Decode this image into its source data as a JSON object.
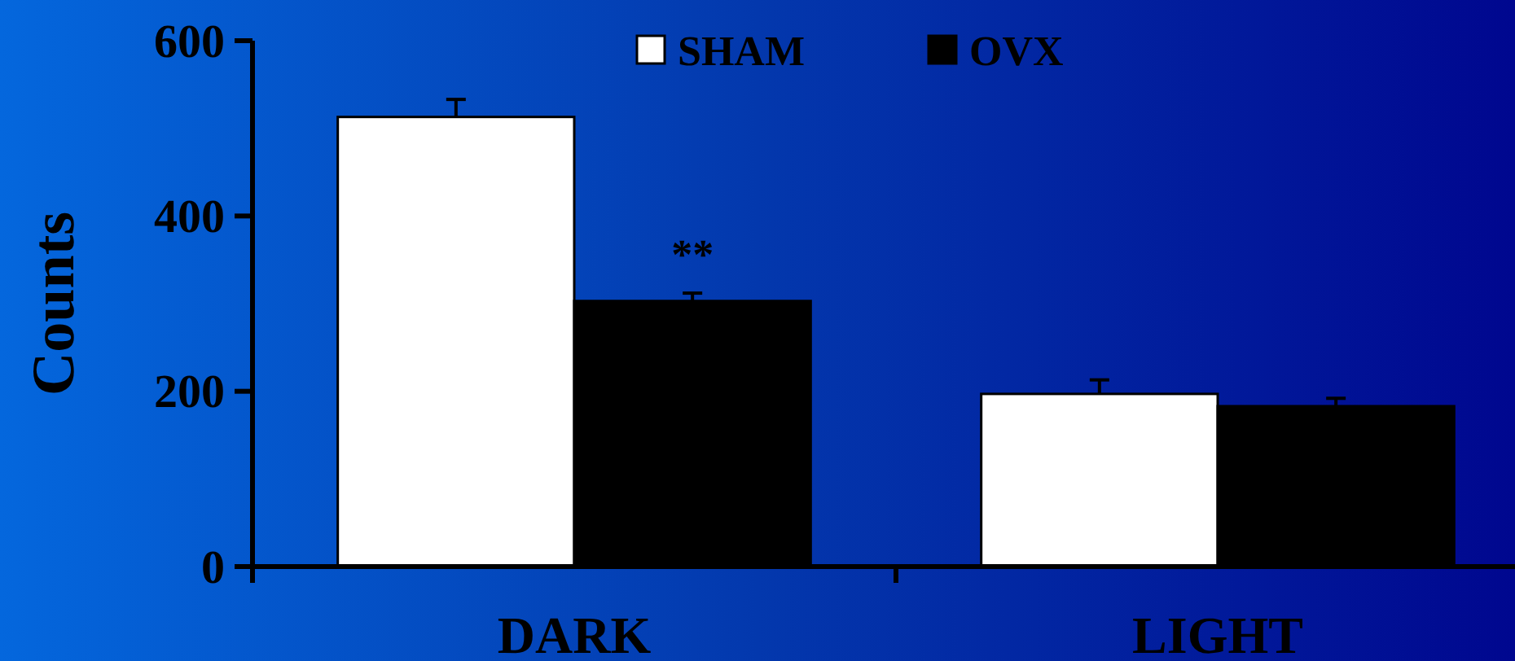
{
  "chart_data": {
    "type": "bar",
    "categories": [
      "DARK",
      "LIGHT"
    ],
    "ylabel": "Counts",
    "ylim": [
      0,
      600
    ],
    "yticks": [
      0,
      200,
      400,
      600
    ],
    "series": [
      {
        "name": "SHAM",
        "color": "#ffffff",
        "values": [
          513,
          197
        ],
        "errors": [
          [
            513,
            533
          ],
          [
            197,
            213
          ]
        ]
      },
      {
        "name": "OVX",
        "color": "#000000",
        "values": [
          303,
          183
        ],
        "errors": [
          [
            303,
            312
          ],
          [
            183,
            192
          ]
        ]
      }
    ],
    "annotations": [
      {
        "text": "**",
        "x": "DARK",
        "y": 340
      }
    ],
    "legend": "top",
    "grid": false
  }
}
